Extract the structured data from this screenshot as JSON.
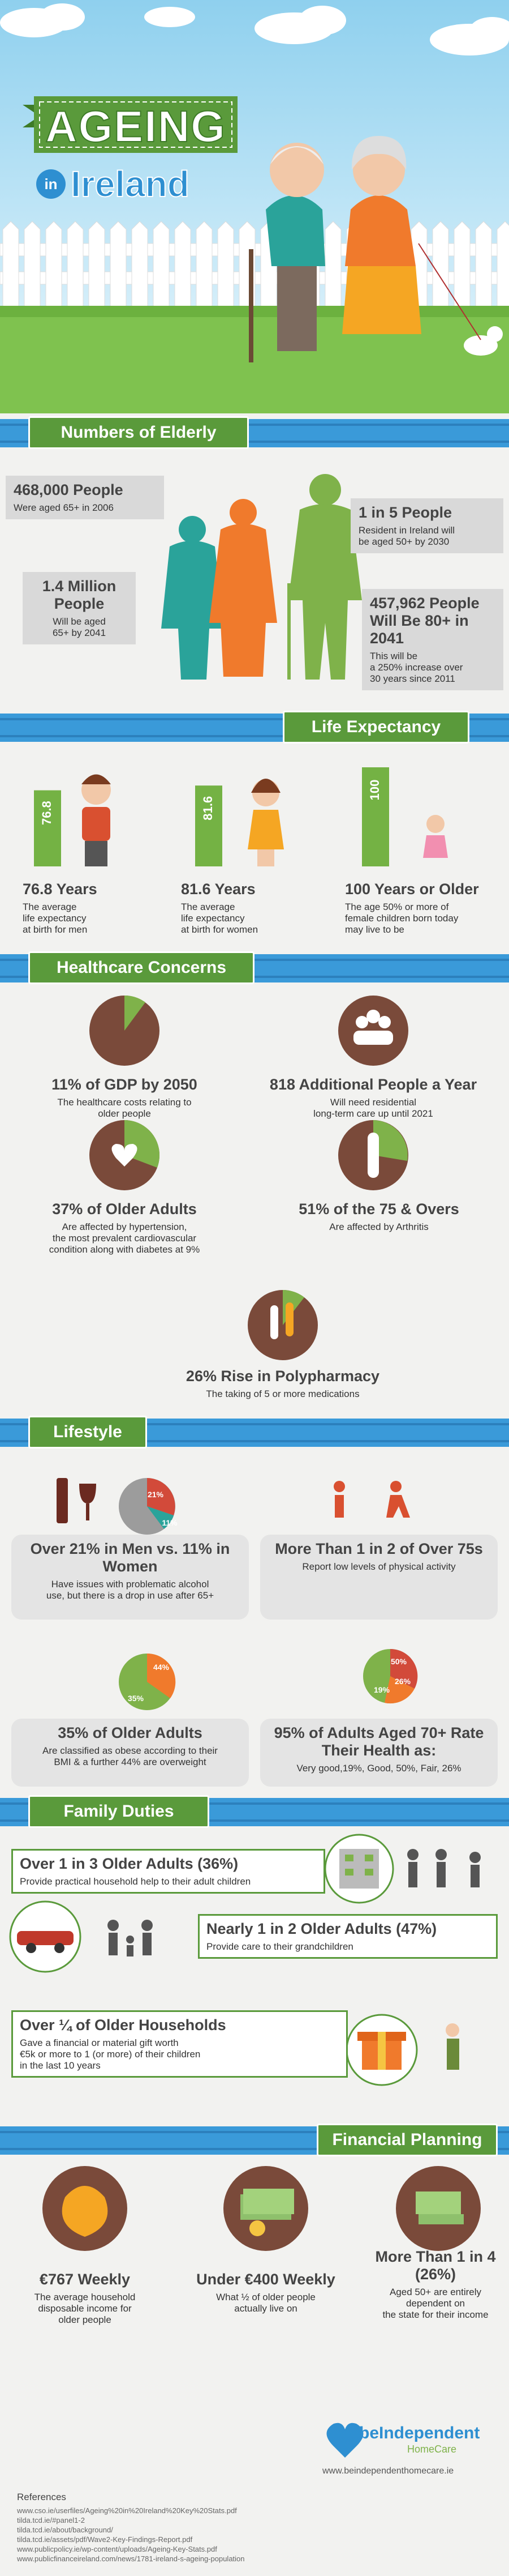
{
  "header": {
    "title": "AGEING",
    "subtitle_prefix": "in",
    "subtitle": "Ireland"
  },
  "numbers_of_elderly": {
    "heading": "Numbers of Elderly",
    "stats": [
      {
        "heading": "468,000 People",
        "lines": [
          "Were aged 65+ in 2006"
        ]
      },
      {
        "heading": "1 in 5 People",
        "lines": [
          "Resident in Ireland will",
          "be aged 50+ by 2030"
        ]
      },
      {
        "heading": "1.4 Million People",
        "lines": [
          "Will be aged",
          "65+ by 2041"
        ]
      },
      {
        "heading": "457,962 People Will Be 80+ in 2041",
        "lines": [
          "This will be",
          "a 250% increase over",
          "30 years since 2011"
        ]
      }
    ]
  },
  "life_expectancy": {
    "heading": "Life Expectancy",
    "items": [
      {
        "value": 76.8,
        "heading": "76.8 Years",
        "lines": [
          "The average",
          "life expectancy",
          "at birth for men"
        ]
      },
      {
        "value": 81.6,
        "heading": "81.6 Years",
        "lines": [
          "The average",
          "life expectancy",
          "at birth for women"
        ]
      },
      {
        "value": 100,
        "heading": "100 Years or Older",
        "lines": [
          "The age 50% or more of",
          "female children born today",
          "may live to be"
        ]
      }
    ]
  },
  "healthcare": {
    "heading": "Healthcare Concerns",
    "items": [
      {
        "heading": "11% of GDP by 2050",
        "lines": [
          "The healthcare costs relating to",
          "older people"
        ]
      },
      {
        "heading": "818 Additional People a Year",
        "lines": [
          "Will need residential",
          "long-term care up until 2021"
        ]
      },
      {
        "heading": "37% of Older Adults",
        "lines": [
          "Are affected by hypertension,",
          "the most prevalent cardiovascular",
          "condition along with diabetes at 9%"
        ]
      },
      {
        "heading": "51% of the 75 & Overs",
        "lines": [
          "Are affected by Arthritis"
        ]
      },
      {
        "heading": "26% Rise in Polypharmacy",
        "lines": [
          "The taking of 5 or more medications"
        ]
      }
    ]
  },
  "lifestyle": {
    "heading": "Lifestyle",
    "items": [
      {
        "pie_labels": [
          "21%",
          "11%"
        ],
        "heading": "Over 21% in Men vs. 11% in Women",
        "lines": [
          "Have issues with problematic alcohol",
          "use, but there is a drop in use after 65+"
        ]
      },
      {
        "heading": "More Than 1 in 2 of Over 75s",
        "lines": [
          "Report low levels of physical activity"
        ]
      },
      {
        "pie_labels": [
          "44%",
          "35%"
        ],
        "heading": "35% of Older Adults",
        "lines": [
          "Are classified as obese according to their",
          "BMI & a further 44% are overweight"
        ]
      },
      {
        "pie_labels": [
          "50%",
          "26%",
          "19%"
        ],
        "heading": "95% of Adults Aged 70+ Rate Their Health as:",
        "lines": [
          "Very good,19%, Good, 50%, Fair, 26%"
        ]
      }
    ]
  },
  "family_duties": {
    "heading": "Family Duties",
    "items": [
      {
        "heading": "Over 1 in 3 Older Adults (36%)",
        "lines": [
          "Provide practical household help to their adult children"
        ]
      },
      {
        "heading": "Nearly 1 in 2 Older Adults (47%)",
        "lines": [
          "Provide care to their grandchildren"
        ]
      },
      {
        "heading": "Over ¼ of Older Households",
        "lines": [
          "Gave a financial or material gift worth",
          "€5k or more to 1 (or more) of their children",
          "in the last 10 years"
        ]
      }
    ]
  },
  "financial_planning": {
    "heading": "Financial Planning",
    "items": [
      {
        "heading": "€767 Weekly",
        "lines": [
          "The average household",
          "disposable income for",
          "older people"
        ]
      },
      {
        "heading": "Under €400 Weekly",
        "lines": [
          "What ½ of older people",
          "actually live on"
        ]
      },
      {
        "heading": "More Than 1 in 4 (26%)",
        "lines": [
          "Aged 50+ are entirely",
          "dependent on",
          "the state for their income"
        ]
      }
    ]
  },
  "footer": {
    "logo": "beIndependent",
    "logo_sub": "HomeCare",
    "url": "www.beindependenthomecare.ie",
    "references_title": "References",
    "references": [
      "www.cso.ie/userfiles/Ageing%20in%20Ireland%20Key%20Stats.pdf",
      "tilda.tcd.ie/#panel1-2",
      "tilda.tcd.ie/about/background/",
      "tilda.tcd.ie/assets/pdf/Wave2-Key-Findings-Report.pdf",
      "www.publicpolicy.ie/wp-content/uploads/Ageing-Key-Stats.pdf",
      "www.publicfinanceireland.com/news/1781-ireland-s-ageing-population"
    ]
  }
}
